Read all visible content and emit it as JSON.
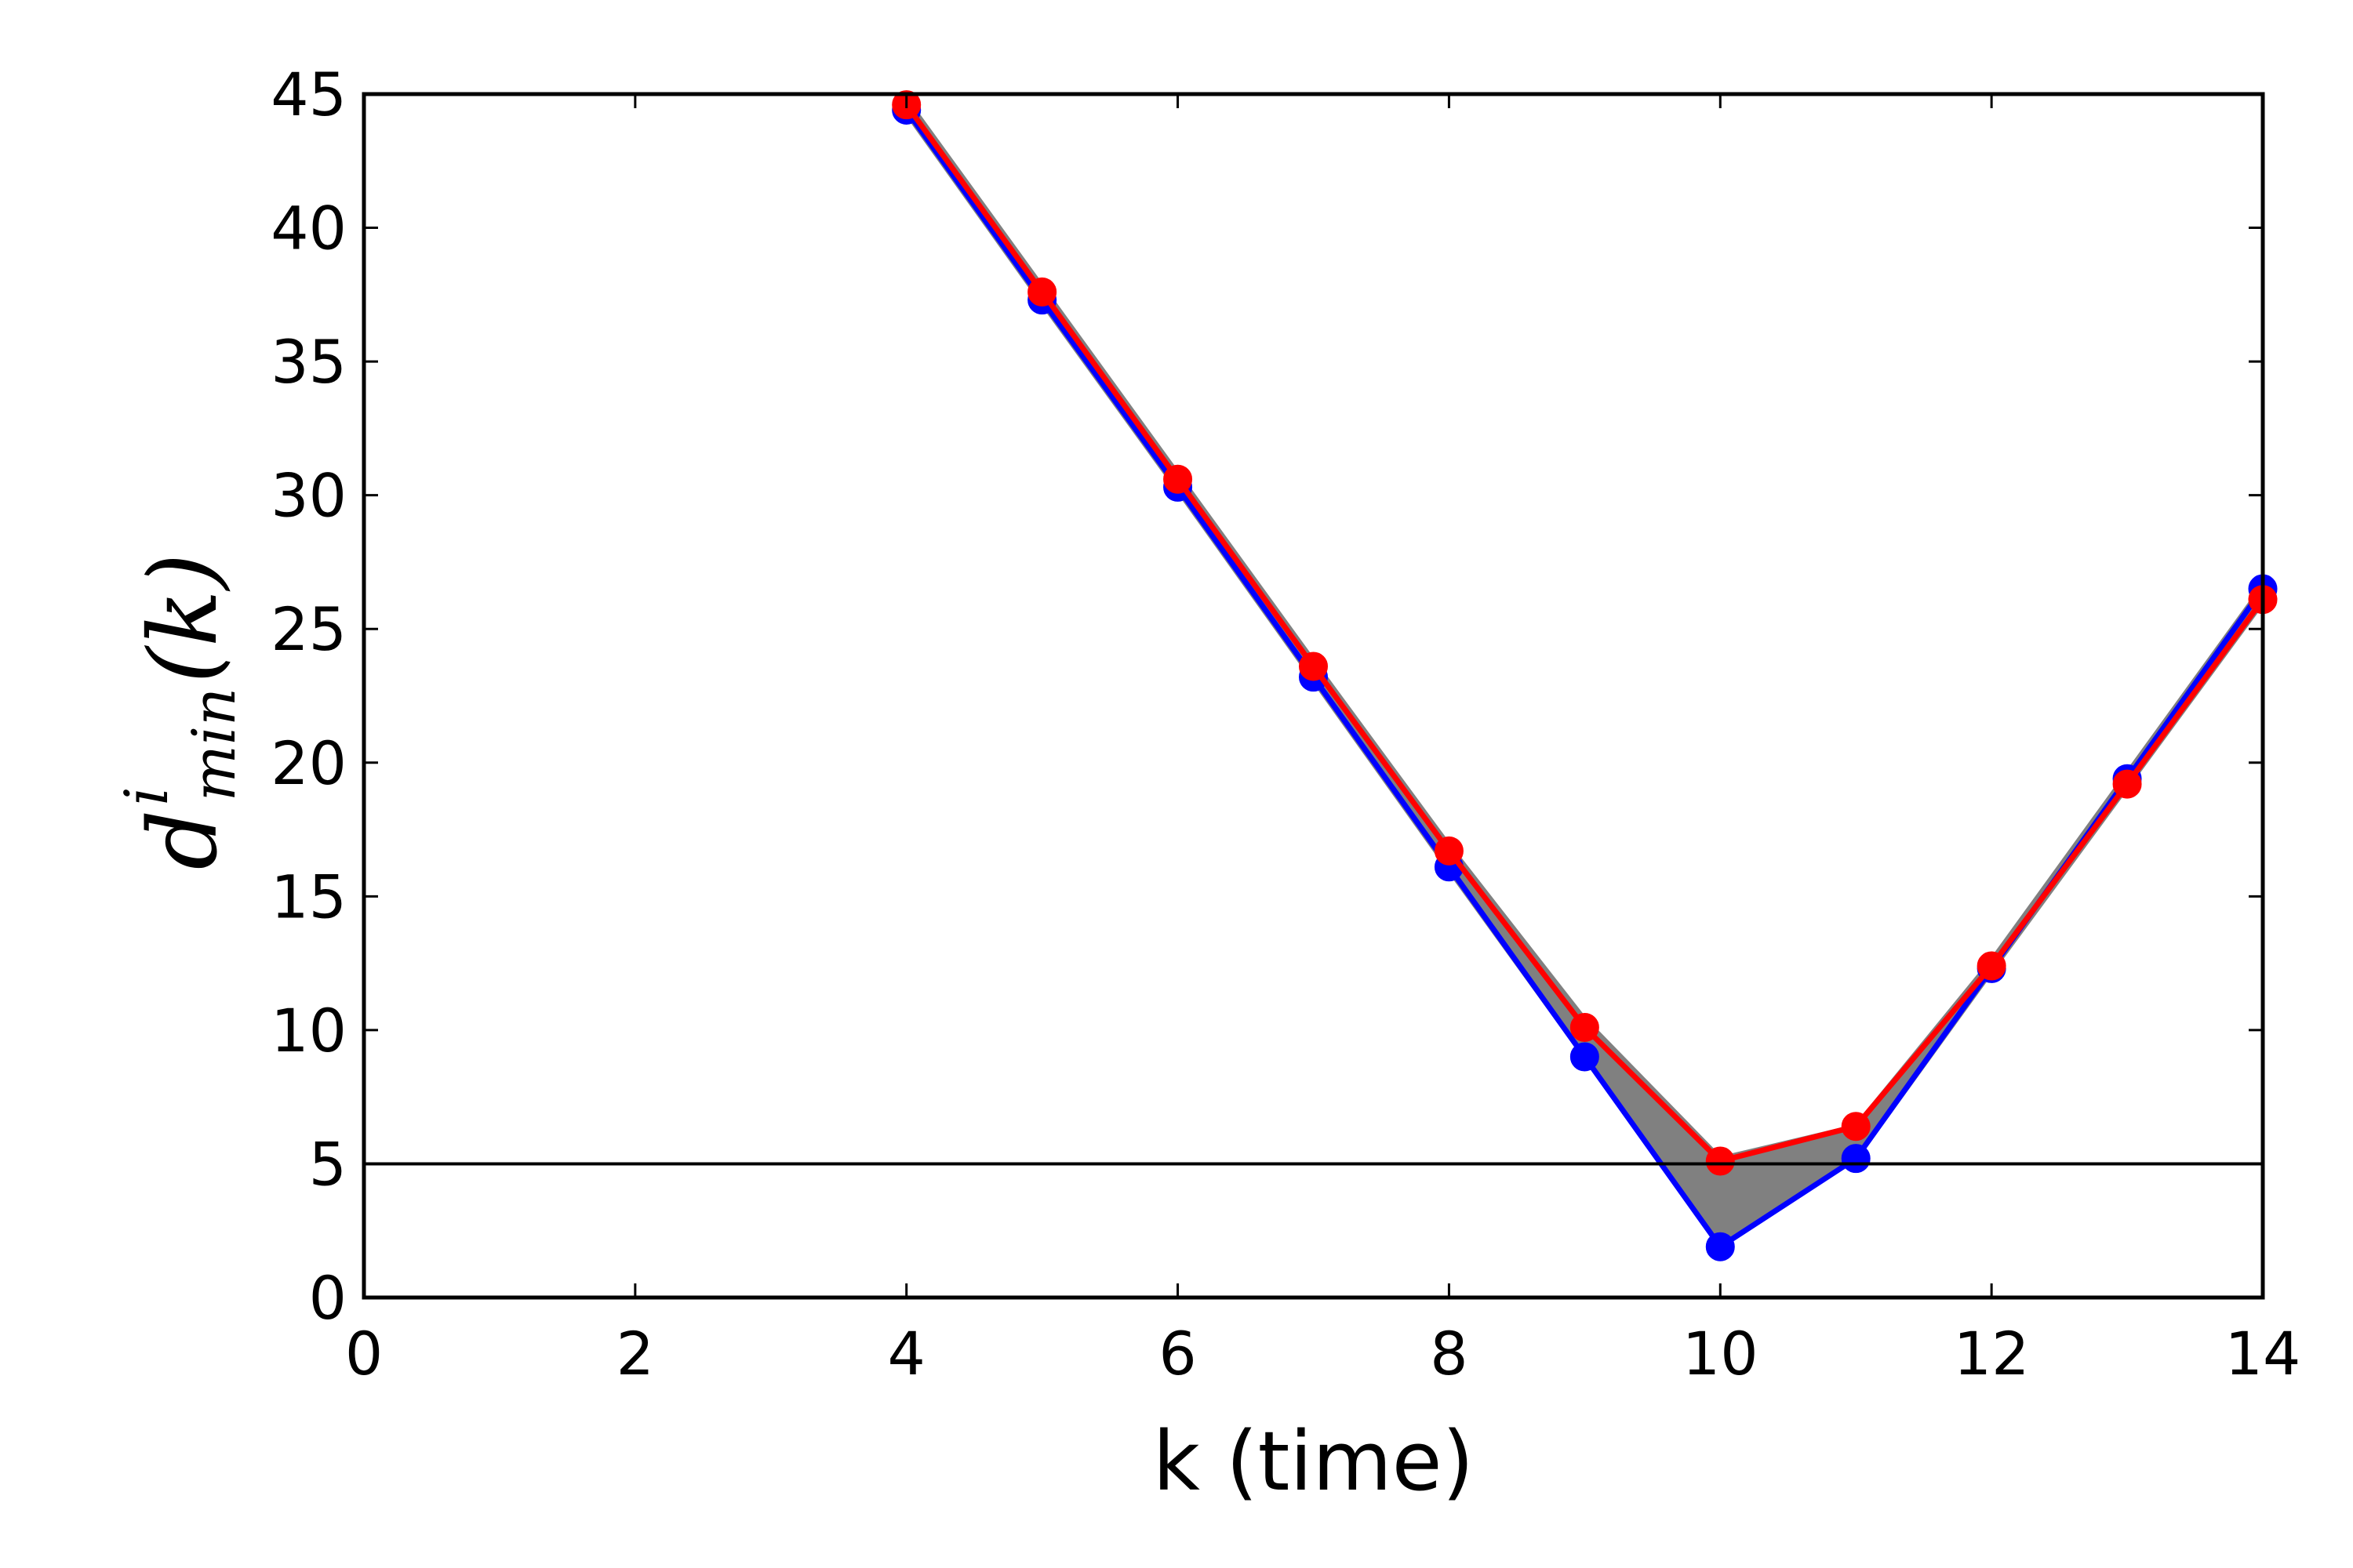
{
  "chart_data": {
    "type": "line",
    "xlabel": "k (time)",
    "ylabel": {
      "base": "d",
      "superscript": "i",
      "subscript": "min",
      "argument": "(k)"
    },
    "xlim": [
      0,
      14
    ],
    "ylim": [
      0,
      45
    ],
    "x_ticks": [
      "0",
      "2",
      "4",
      "6",
      "8",
      "10",
      "12",
      "14"
    ],
    "y_ticks": [
      "0",
      "5",
      "10",
      "15",
      "20",
      "25",
      "30",
      "35",
      "40",
      "45"
    ],
    "grid": false,
    "legend": "none",
    "reference_line": {
      "y": 5,
      "color": "#000000"
    },
    "series": [
      {
        "color": "#808080",
        "marker": false,
        "band": true,
        "x": [
          4,
          5,
          6,
          7,
          8,
          9,
          10,
          11,
          12,
          13,
          14
        ],
        "upper": [
          44.8,
          37.8,
          30.8,
          23.8,
          16.9,
          10.4,
          5.2,
          6.4,
          12.6,
          19.6,
          26.6
        ],
        "lower": [
          44.3,
          37.2,
          30.2,
          23.1,
          16.0,
          9.0,
          2.0,
          5.2,
          12.2,
          19.1,
          26.0
        ]
      },
      {
        "color": "#0000ff",
        "marker": true,
        "x": [
          4,
          5,
          6,
          7,
          8,
          9,
          10,
          11,
          12,
          13,
          14
        ],
        "y": [
          44.4,
          37.3,
          30.3,
          23.2,
          16.1,
          9.0,
          1.9,
          5.2,
          12.3,
          19.4,
          26.5
        ]
      },
      {
        "color": "#ff0000",
        "marker": true,
        "x": [
          4,
          5,
          6,
          7,
          8,
          9,
          10,
          11,
          12,
          13,
          14
        ],
        "y": [
          44.6,
          37.6,
          30.6,
          23.6,
          16.7,
          10.1,
          5.1,
          6.4,
          12.4,
          19.2,
          26.1
        ]
      }
    ]
  }
}
